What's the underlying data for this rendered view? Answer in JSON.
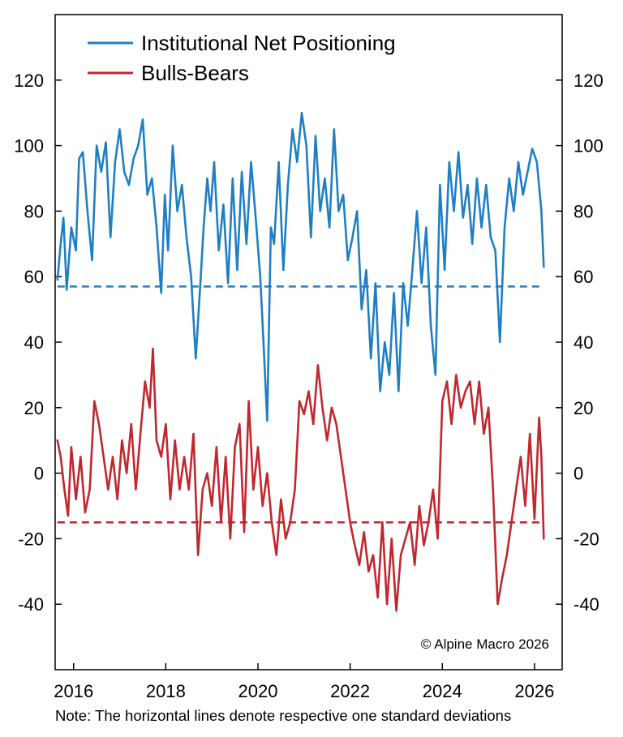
{
  "chart_data": {
    "type": "line",
    "title": "",
    "xlabel": "",
    "ylabel": "",
    "xlim": [
      2015.6,
      2026.6
    ],
    "ylim": [
      -60,
      140
    ],
    "x_ticks": [
      2016,
      2018,
      2020,
      2022,
      2024,
      2026
    ],
    "x_tick_labels": [
      "2016",
      "2018",
      "2020",
      "2022",
      "2024",
      "2026"
    ],
    "y_ticks": [
      120,
      100,
      80,
      60,
      40,
      20,
      0,
      -20,
      -40
    ],
    "y_tick_labels": [
      "120",
      "100",
      "80",
      "60",
      "40",
      "20",
      "0",
      "-20",
      "-40"
    ],
    "legend_position": "top-left",
    "grid": false,
    "series": [
      {
        "name": "Institutional Net Positioning",
        "color": "#1f7fc4",
        "x": [
          2015.65,
          2015.72,
          2015.78,
          2015.85,
          2015.95,
          2016.05,
          2016.12,
          2016.2,
          2016.3,
          2016.4,
          2016.5,
          2016.6,
          2016.7,
          2016.8,
          2016.9,
          2017.0,
          2017.1,
          2017.2,
          2017.3,
          2017.4,
          2017.5,
          2017.6,
          2017.7,
          2017.8,
          2017.9,
          2017.98,
          2018.05,
          2018.15,
          2018.25,
          2018.35,
          2018.45,
          2018.55,
          2018.65,
          2018.75,
          2018.82,
          2018.9,
          2018.97,
          2019.05,
          2019.15,
          2019.25,
          2019.35,
          2019.45,
          2019.55,
          2019.65,
          2019.75,
          2019.85,
          2019.95,
          2020.05,
          2020.12,
          2020.2,
          2020.28,
          2020.35,
          2020.45,
          2020.55,
          2020.65,
          2020.75,
          2020.85,
          2020.95,
          2021.05,
          2021.15,
          2021.25,
          2021.35,
          2021.45,
          2021.55,
          2021.65,
          2021.75,
          2021.85,
          2021.95,
          2022.05,
          2022.15,
          2022.25,
          2022.35,
          2022.45,
          2022.55,
          2022.65,
          2022.75,
          2022.85,
          2022.95,
          2023.05,
          2023.15,
          2023.25,
          2023.35,
          2023.45,
          2023.55,
          2023.65,
          2023.75,
          2023.85,
          2023.95,
          2024.05,
          2024.15,
          2024.25,
          2024.35,
          2024.45,
          2024.55,
          2024.65,
          2024.75,
          2024.85,
          2024.95,
          2025.05,
          2025.15,
          2025.25,
          2025.35,
          2025.45,
          2025.55,
          2025.65,
          2025.75,
          2025.85,
          2025.95,
          2026.05,
          2026.15,
          2026.2
        ],
        "values": [
          59,
          70,
          78,
          56,
          75,
          68,
          96,
          98,
          80,
          65,
          100,
          92,
          101,
          72,
          95,
          105,
          92,
          88,
          96,
          100,
          108,
          85,
          90,
          75,
          55,
          85,
          68,
          100,
          80,
          88,
          72,
          60,
          35,
          58,
          75,
          90,
          80,
          95,
          68,
          82,
          58,
          90,
          62,
          92,
          70,
          95,
          78,
          60,
          40,
          16,
          75,
          70,
          95,
          62,
          88,
          105,
          95,
          110,
          100,
          72,
          103,
          80,
          90,
          75,
          105,
          80,
          85,
          65,
          72,
          80,
          50,
          62,
          35,
          58,
          25,
          40,
          30,
          55,
          25,
          58,
          45,
          62,
          80,
          58,
          75,
          45,
          30,
          88,
          62,
          95,
          80,
          98,
          78,
          88,
          70,
          90,
          75,
          88,
          72,
          68,
          40,
          75,
          90,
          80,
          95,
          85,
          92,
          99,
          95,
          80,
          63
        ]
      },
      {
        "name": "Bulls-Bears",
        "color": "#c1272d",
        "x": [
          2015.65,
          2015.72,
          2015.8,
          2015.88,
          2015.95,
          2016.05,
          2016.15,
          2016.25,
          2016.35,
          2016.45,
          2016.55,
          2016.65,
          2016.75,
          2016.85,
          2016.95,
          2017.05,
          2017.15,
          2017.25,
          2017.35,
          2017.45,
          2017.55,
          2017.65,
          2017.72,
          2017.8,
          2017.9,
          2018.0,
          2018.1,
          2018.2,
          2018.3,
          2018.4,
          2018.5,
          2018.6,
          2018.7,
          2018.8,
          2018.9,
          2019.0,
          2019.1,
          2019.2,
          2019.3,
          2019.4,
          2019.5,
          2019.6,
          2019.7,
          2019.8,
          2019.9,
          2020.0,
          2020.1,
          2020.2,
          2020.3,
          2020.4,
          2020.5,
          2020.6,
          2020.7,
          2020.8,
          2020.9,
          2021.0,
          2021.1,
          2021.2,
          2021.3,
          2021.4,
          2021.5,
          2021.6,
          2021.7,
          2021.8,
          2021.9,
          2022.0,
          2022.1,
          2022.2,
          2022.3,
          2022.4,
          2022.5,
          2022.6,
          2022.7,
          2022.8,
          2022.9,
          2023.0,
          2023.1,
          2023.2,
          2023.3,
          2023.4,
          2023.5,
          2023.6,
          2023.7,
          2023.8,
          2023.9,
          2024.0,
          2024.1,
          2024.2,
          2024.3,
          2024.4,
          2024.5,
          2024.6,
          2024.7,
          2024.8,
          2024.9,
          2025.0,
          2025.1,
          2025.2,
          2025.3,
          2025.4,
          2025.5,
          2025.6,
          2025.7,
          2025.8,
          2025.9,
          2026.0,
          2026.1,
          2026.15,
          2026.2
        ],
        "values": [
          10,
          5,
          -5,
          -13,
          8,
          -8,
          5,
          -12,
          -5,
          22,
          15,
          5,
          -5,
          5,
          -8,
          10,
          0,
          15,
          -5,
          12,
          28,
          20,
          38,
          10,
          5,
          15,
          -8,
          10,
          -5,
          5,
          -5,
          12,
          -25,
          -5,
          0,
          -10,
          8,
          -15,
          5,
          -20,
          8,
          15,
          -18,
          22,
          -5,
          8,
          -10,
          0,
          -15,
          -25,
          -8,
          -20,
          -15,
          -5,
          22,
          18,
          25,
          15,
          33,
          20,
          10,
          20,
          15,
          5,
          -5,
          -15,
          -22,
          -28,
          -18,
          -30,
          -25,
          -38,
          -15,
          -40,
          -20,
          -42,
          -25,
          -20,
          -15,
          -28,
          -10,
          -22,
          -15,
          -5,
          -20,
          22,
          28,
          15,
          30,
          20,
          25,
          28,
          15,
          28,
          12,
          20,
          -5,
          -40,
          -32,
          -25,
          -15,
          -5,
          5,
          -10,
          12,
          -14,
          17,
          5,
          -20
        ]
      }
    ],
    "reference_lines": [
      {
        "label": "Institutional Net Positioning one standard deviation",
        "value": 57,
        "color": "#1f7fc4",
        "style": "dashed"
      },
      {
        "label": "Bulls-Bears one standard deviation",
        "value": -15,
        "color": "#c1272d",
        "style": "dashed"
      }
    ]
  },
  "legend": {
    "items": [
      {
        "label": "Institutional Net Positioning",
        "color": "#1f7fc4"
      },
      {
        "label": "Bulls-Bears",
        "color": "#c1272d"
      }
    ]
  },
  "copyright": "© Alpine Macro 2026",
  "footnote": "Note: The horizontal lines denote respective one standard deviations"
}
